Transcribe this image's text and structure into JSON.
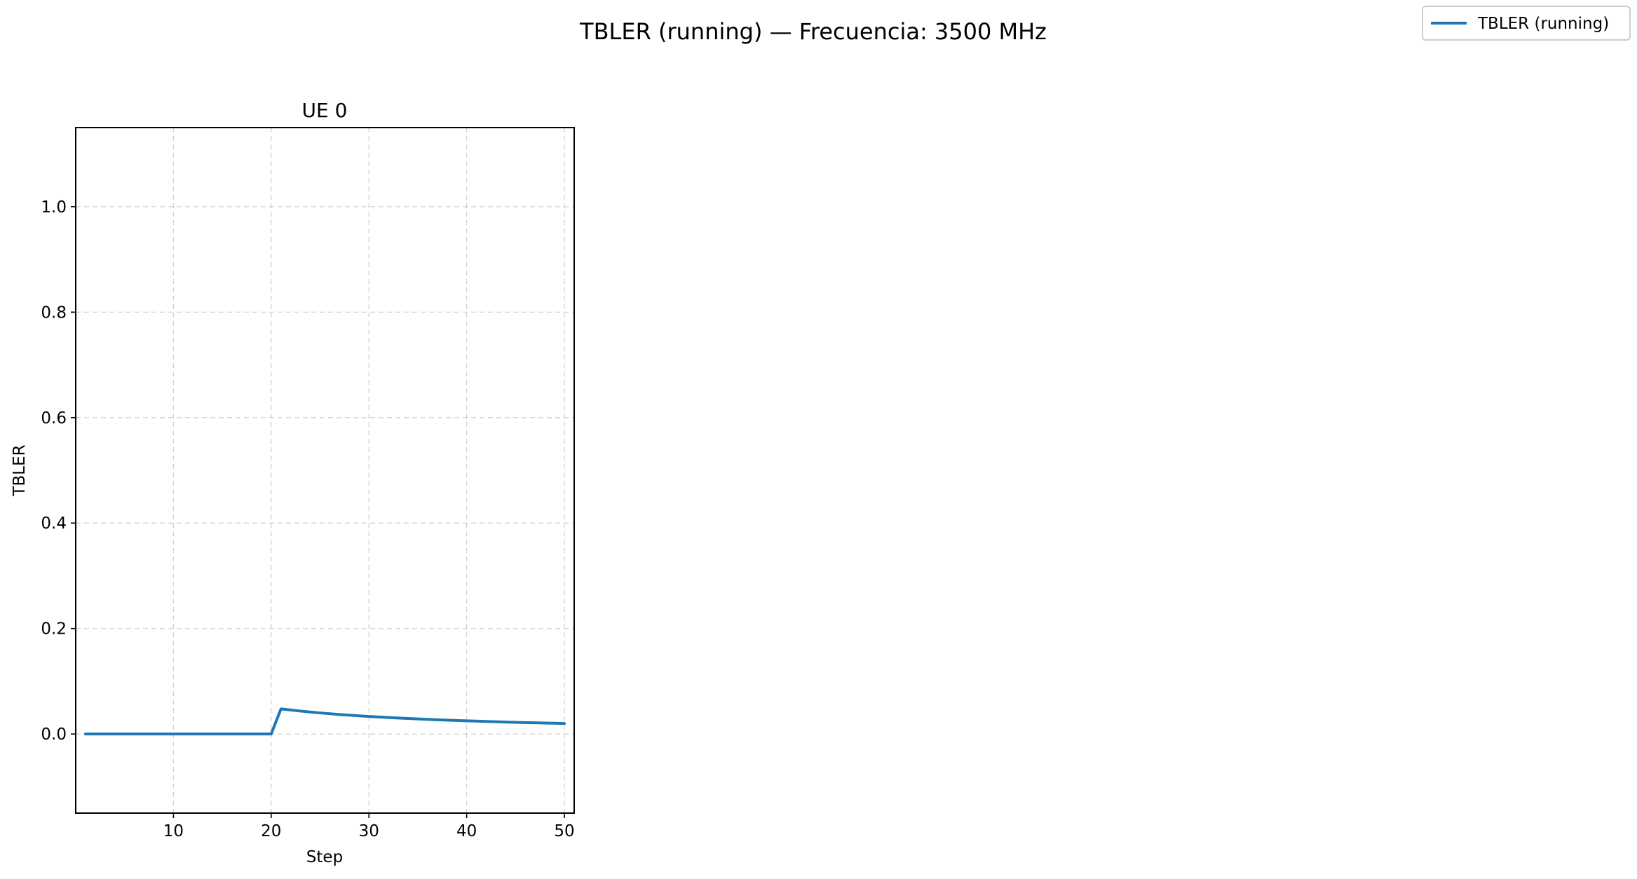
{
  "figure": {
    "title": "TBLER (running) — Frecuencia: 3500 MHz"
  },
  "legend": {
    "entries": [
      {
        "label": "TBLER (running)",
        "color": "#1f77b4"
      }
    ],
    "placement": "top-right"
  },
  "chart_data": {
    "type": "line",
    "title": "UE 0",
    "xlabel": "Step",
    "ylabel": "TBLER",
    "xlim": [
      0,
      51
    ],
    "ylim": [
      -0.15,
      1.15
    ],
    "xticks": [
      10,
      20,
      30,
      40,
      50
    ],
    "yticks": [
      0.0,
      0.2,
      0.4,
      0.6,
      0.8,
      1.0
    ],
    "xtick_labels": [
      "10",
      "20",
      "30",
      "40",
      "50"
    ],
    "ytick_labels": [
      "0.0",
      "0.2",
      "0.4",
      "0.6",
      "0.8",
      "1.0"
    ],
    "grid": true,
    "grid_style": "dashed",
    "series": [
      {
        "name": "TBLER (running)",
        "color": "#1f77b4",
        "x": [
          1,
          2,
          3,
          4,
          5,
          6,
          7,
          8,
          9,
          10,
          11,
          12,
          13,
          14,
          15,
          16,
          17,
          18,
          19,
          20,
          21,
          22,
          23,
          24,
          25,
          26,
          27,
          28,
          29,
          30,
          31,
          32,
          33,
          34,
          35,
          36,
          37,
          38,
          39,
          40,
          41,
          42,
          43,
          44,
          45,
          46,
          47,
          48,
          49,
          50
        ],
        "y": [
          0,
          0,
          0,
          0,
          0,
          0,
          0,
          0,
          0,
          0,
          0,
          0,
          0,
          0,
          0,
          0,
          0,
          0,
          0,
          0,
          0.0476,
          0.0455,
          0.0435,
          0.0417,
          0.04,
          0.0385,
          0.037,
          0.0357,
          0.0345,
          0.0333,
          0.0323,
          0.0313,
          0.0303,
          0.0294,
          0.0286,
          0.0278,
          0.027,
          0.0263,
          0.0256,
          0.025,
          0.0244,
          0.0238,
          0.0233,
          0.0227,
          0.0222,
          0.0217,
          0.0213,
          0.0208,
          0.0204,
          0.02
        ]
      }
    ]
  }
}
